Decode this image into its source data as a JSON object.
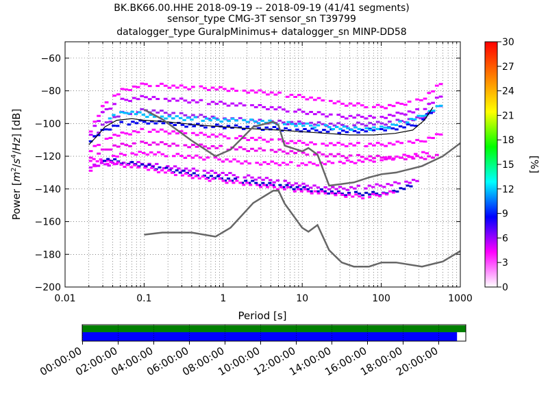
{
  "header": {
    "title_lines": [
      "BK.BK66.00.HHE   2018-09-19 -- 2018-09-19  (41/41 segments)",
      "sensor_type CMG-3T sensor_sn T39799",
      "datalogger_type GuralpMinimus+ datalogger_sn MINP-DD58"
    ]
  },
  "chart_data": {
    "type": "heatmap",
    "title": "BK.BK66.00.HHE   2018-09-19 -- 2018-09-19  (41/41 segments)",
    "subtitle": [
      "sensor_type CMG-3T sensor_sn T39799",
      "datalogger_type GuralpMinimus+ datalogger_sn MINP-DD58"
    ],
    "xlabel": "Period [s]",
    "ylabel_parts": [
      "Power [",
      "m",
      "2",
      "/",
      "s",
      "4",
      "/",
      "Hz",
      "] [dB]"
    ],
    "xscale": "log",
    "xlim": [
      0.01,
      1000
    ],
    "ylim": [
      -200,
      -50
    ],
    "xticks": [
      {
        "value": 0.01,
        "label": "0.01"
      },
      {
        "value": 0.1,
        "label": "0.1"
      },
      {
        "value": 1,
        "label": "1"
      },
      {
        "value": 10,
        "label": "10"
      },
      {
        "value": 100,
        "label": "100"
      },
      {
        "value": 1000,
        "label": "1000"
      }
    ],
    "yticks": [
      {
        "value": -60,
        "label": "−60"
      },
      {
        "value": -80,
        "label": "−80"
      },
      {
        "value": -100,
        "label": "−100"
      },
      {
        "value": -120,
        "label": "−120"
      },
      {
        "value": -140,
        "label": "−140"
      },
      {
        "value": -160,
        "label": "−160"
      },
      {
        "value": -180,
        "label": "−180"
      },
      {
        "value": -200,
        "label": "−200"
      }
    ],
    "grid": "dotted",
    "colorbar": {
      "label": "[%]",
      "range": [
        0,
        30
      ],
      "ticks": [
        {
          "value": 0,
          "label": "0"
        },
        {
          "value": 3,
          "label": "3"
        },
        {
          "value": 6,
          "label": "6"
        },
        {
          "value": 9,
          "label": "9"
        },
        {
          "value": 12,
          "label": "12"
        },
        {
          "value": 15,
          "label": "15"
        },
        {
          "value": 18,
          "label": "18"
        },
        {
          "value": 21,
          "label": "21"
        },
        {
          "value": 24,
          "label": "24"
        },
        {
          "value": 27,
          "label": "27"
        },
        {
          "value": 30,
          "label": "30"
        }
      ],
      "stops": [
        "#ffffff",
        "#ff00ff",
        "#0000ff",
        "#00ffff",
        "#00ff00",
        "#ffff00",
        "#ff8000",
        "#ff0000"
      ]
    },
    "model_curves": {
      "color": "#666666",
      "nhnm": [
        [
          0.1,
          -91.5
        ],
        [
          0.17,
          -97.4
        ],
        [
          0.4,
          -110.5
        ],
        [
          0.8,
          -120
        ],
        [
          1.24,
          -116
        ],
        [
          2.4,
          -102
        ],
        [
          4.3,
          -99
        ],
        [
          5,
          -101
        ],
        [
          6,
          -113.5
        ],
        [
          10,
          -117
        ],
        [
          12,
          -115
        ],
        [
          15.6,
          -119
        ],
        [
          21.9,
          -138
        ],
        [
          31.6,
          -137
        ],
        [
          45,
          -136
        ],
        [
          70,
          -133
        ],
        [
          101,
          -131
        ],
        [
          154,
          -130
        ],
        [
          328,
          -126
        ],
        [
          600,
          -120
        ],
        [
          1000,
          -112
        ]
      ],
      "nlnm": [
        [
          0.1,
          -168
        ],
        [
          0.17,
          -166.7
        ],
        [
          0.4,
          -166.7
        ],
        [
          0.8,
          -169.2
        ],
        [
          1.24,
          -163.7
        ],
        [
          2.4,
          -148.6
        ],
        [
          4.3,
          -141.1
        ],
        [
          5,
          -141
        ],
        [
          6,
          -149
        ],
        [
          10,
          -163.8
        ],
        [
          12,
          -166.2
        ],
        [
          15.6,
          -162.1
        ],
        [
          21.9,
          -177.5
        ],
        [
          31.6,
          -185
        ],
        [
          45,
          -187.5
        ],
        [
          70,
          -187.5
        ],
        [
          101,
          -185
        ],
        [
          154,
          -185
        ],
        [
          328,
          -187.5
        ],
        [
          600,
          -184.4
        ],
        [
          1000,
          -178
        ]
      ]
    },
    "median_curve": {
      "color": "#000000",
      "points": [
        [
          0.02,
          -113
        ],
        [
          0.025,
          -108
        ],
        [
          0.032,
          -102
        ],
        [
          0.045,
          -98
        ],
        [
          0.07,
          -97
        ],
        [
          0.1,
          -98
        ],
        [
          0.2,
          -99
        ],
        [
          0.5,
          -101
        ],
        [
          1,
          -102
        ],
        [
          2,
          -103
        ],
        [
          5,
          -104
        ],
        [
          10,
          -105
        ],
        [
          20,
          -106
        ],
        [
          40,
          -107
        ],
        [
          80,
          -107
        ],
        [
          150,
          -106
        ],
        [
          250,
          -104
        ],
        [
          350,
          -98
        ],
        [
          450,
          -90
        ]
      ]
    },
    "bands": [
      {
        "name": "",
        "color": "#a020f0",
        "points": [
          [
            0.02,
            -112
          ],
          [
            0.03,
            -100
          ],
          [
            0.05,
            -94
          ],
          [
            0.1,
            -92
          ],
          [
            0.3,
            -95
          ],
          [
            1,
            -97
          ],
          [
            3,
            -99
          ],
          [
            10,
            -100
          ],
          [
            30,
            -101
          ],
          [
            100,
            -100
          ],
          [
            300,
            -97
          ],
          [
            600,
            -88
          ]
        ]
      },
      {
        "name": "",
        "color": "#0000ee",
        "points": [
          [
            0.02,
            -110
          ],
          [
            0.03,
            -104
          ],
          [
            0.05,
            -100
          ],
          [
            0.1,
            -99
          ],
          [
            0.3,
            -101
          ],
          [
            1,
            -102
          ],
          [
            3,
            -103
          ],
          [
            10,
            -104
          ],
          [
            30,
            -105
          ],
          [
            100,
            -104
          ],
          [
            250,
            -101
          ],
          [
            450,
            -92
          ]
        ]
      },
      {
        "name": "",
        "color": "#c000ff",
        "points": [
          [
            0.02,
            -106
          ],
          [
            0.03,
            -92
          ],
          [
            0.05,
            -86
          ],
          [
            0.1,
            -84
          ],
          [
            0.3,
            -86
          ],
          [
            1,
            -88
          ],
          [
            3,
            -90
          ],
          [
            10,
            -93
          ],
          [
            30,
            -96
          ],
          [
            100,
            -96
          ],
          [
            300,
            -92
          ],
          [
            600,
            -82
          ]
        ]
      },
      {
        "name": "",
        "color": "#ff00ff",
        "points": [
          [
            0.02,
            -104
          ],
          [
            0.03,
            -88
          ],
          [
            0.05,
            -80
          ],
          [
            0.1,
            -76
          ],
          [
            0.3,
            -78
          ],
          [
            1,
            -79
          ],
          [
            3,
            -81
          ],
          [
            10,
            -84
          ],
          [
            30,
            -88
          ],
          [
            100,
            -90
          ],
          [
            300,
            -86
          ],
          [
            600,
            -74
          ]
        ]
      },
      {
        "name": "",
        "color": "#ff00ff",
        "points": [
          [
            0.02,
            -116
          ],
          [
            0.035,
            -108
          ],
          [
            0.1,
            -104
          ],
          [
            0.3,
            -106
          ],
          [
            1,
            -108
          ],
          [
            3,
            -110
          ],
          [
            10,
            -112
          ],
          [
            30,
            -113
          ],
          [
            100,
            -113
          ],
          [
            300,
            -111
          ],
          [
            600,
            -106
          ]
        ]
      },
      {
        "name": "",
        "color": "#ee00ee",
        "points": [
          [
            0.02,
            -120
          ],
          [
            0.04,
            -114
          ],
          [
            0.1,
            -112
          ],
          [
            0.5,
            -114
          ],
          [
            2,
            -116
          ],
          [
            10,
            -118
          ],
          [
            30,
            -120
          ],
          [
            100,
            -121
          ],
          [
            300,
            -121
          ],
          [
            600,
            -120
          ]
        ]
      },
      {
        "name": "",
        "color": "#ff00ff",
        "points": [
          [
            0.02,
            -128
          ],
          [
            0.04,
            -120
          ],
          [
            0.1,
            -118
          ],
          [
            0.5,
            -121
          ],
          [
            2,
            -124
          ],
          [
            10,
            -125
          ],
          [
            30,
            -124
          ],
          [
            100,
            -122
          ],
          [
            400,
            -118
          ]
        ]
      },
      {
        "name": "",
        "color": "#d000ff",
        "points": [
          [
            0.02,
            -126
          ],
          [
            0.05,
            -124
          ],
          [
            0.1,
            -125
          ],
          [
            0.3,
            -128
          ],
          [
            1,
            -131
          ],
          [
            3,
            -134
          ],
          [
            10,
            -138
          ],
          [
            30,
            -140
          ],
          [
            100,
            -138
          ],
          [
            300,
            -135
          ]
        ]
      },
      {
        "name": "",
        "color": "#0000cc",
        "points": [
          [
            0.03,
            -122
          ],
          [
            0.1,
            -126
          ],
          [
            0.3,
            -130
          ],
          [
            1,
            -134
          ],
          [
            3,
            -137
          ],
          [
            10,
            -140
          ],
          [
            30,
            -143
          ],
          [
            100,
            -143
          ],
          [
            250,
            -138
          ]
        ]
      },
      {
        "name": "",
        "color": "#ff00ff",
        "points": [
          [
            0.02,
            -122
          ],
          [
            0.06,
            -126
          ],
          [
            0.2,
            -130
          ],
          [
            0.6,
            -134
          ],
          [
            2,
            -137
          ],
          [
            6,
            -140
          ],
          [
            20,
            -143
          ],
          [
            60,
            -145
          ],
          [
            150,
            -142
          ]
        ]
      },
      {
        "name": "",
        "color": "#00bfff",
        "points": [
          [
            0.035,
            -96
          ],
          [
            0.06,
            -93
          ],
          [
            0.1,
            -95
          ],
          [
            0.3,
            -97
          ],
          [
            1,
            -98
          ],
          [
            3,
            -99
          ],
          [
            10,
            -101
          ],
          [
            30,
            -103
          ],
          [
            100,
            -103
          ],
          [
            300,
            -96
          ],
          [
            600,
            -88
          ]
        ]
      }
    ],
    "availability": {
      "time_labels": [
        "00:00:00",
        "02:00:00",
        "04:00:00",
        "06:00:00",
        "08:00:00",
        "10:00:00",
        "12:00:00",
        "14:00:00",
        "16:00:00",
        "18:00:00",
        "20:00:00"
      ],
      "data_fraction": 0.978,
      "top_color": "#008000",
      "bottom_color": "#0000ff"
    }
  }
}
